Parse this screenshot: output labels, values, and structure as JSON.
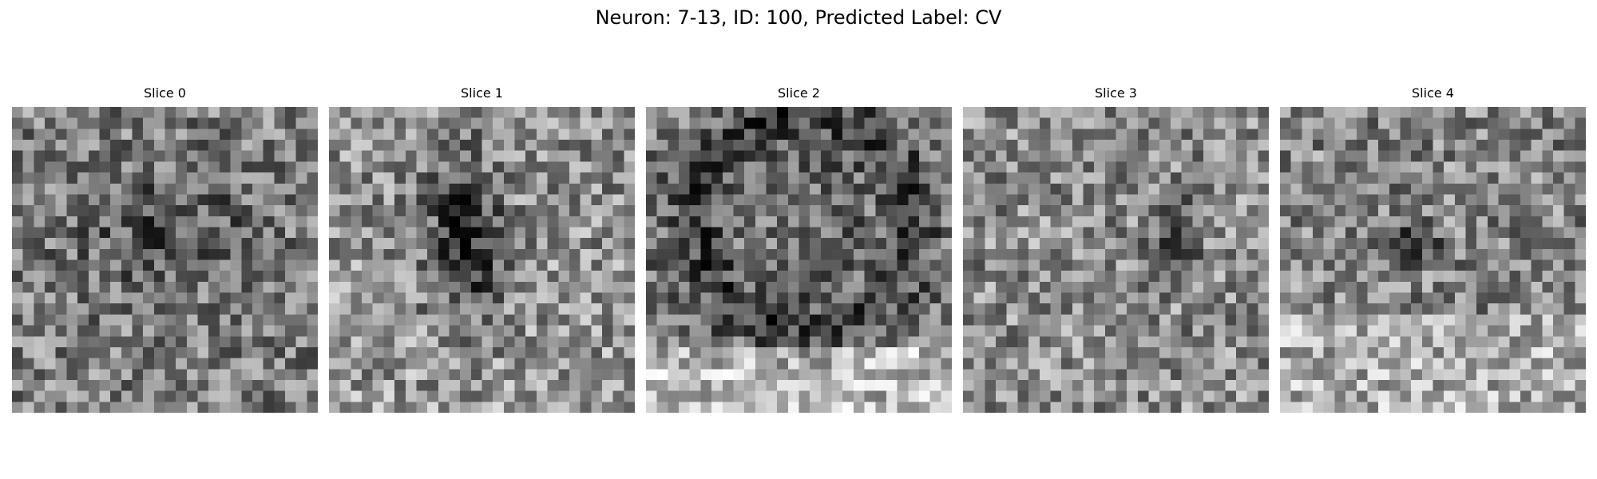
{
  "figure": {
    "title": "Neuron: 7-13, ID: 100, Predicted Label: CV"
  },
  "colormap": "gray",
  "grid_size": 28,
  "slices": [
    {
      "title": "Slice 0",
      "pattern": "faint-dark-center"
    },
    {
      "title": "Slice 1",
      "pattern": "dark-vertical-blob"
    },
    {
      "title": "Slice 2",
      "pattern": "dark-ring-bright-bottom"
    },
    {
      "title": "Slice 3",
      "pattern": "small-dark-spot"
    },
    {
      "title": "Slice 4",
      "pattern": "small-dark-spot-bright-bottom"
    }
  ]
}
